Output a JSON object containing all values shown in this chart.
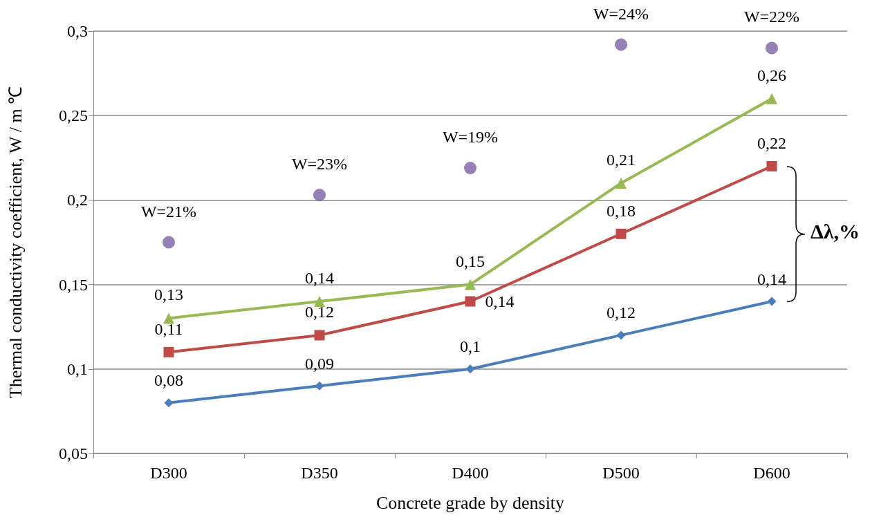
{
  "chart_data": {
    "type": "line",
    "xlabel": "Concrete grade by density",
    "ylabel": "Thermal conductivity coefficient, W / m ℃",
    "categories": [
      "D300",
      "D350",
      "D400",
      "D500",
      "D600"
    ],
    "series": [
      {
        "color": "#4a7ebb",
        "marker": "diamond",
        "values": [
          0.08,
          0.09,
          0.1,
          0.12,
          0.14
        ],
        "value_labels": [
          "0,08",
          "0,09",
          "0,1",
          "0,12",
          "0,14"
        ]
      },
      {
        "color": "#be4b48",
        "marker": "square",
        "values": [
          0.11,
          0.12,
          0.14,
          0.18,
          0.22
        ],
        "value_labels": [
          "0,11",
          "0,12",
          "0,14",
          "0,18",
          "0,22"
        ]
      },
      {
        "color": "#98b954",
        "marker": "triangle",
        "values": [
          0.13,
          0.14,
          0.15,
          0.21,
          0.26
        ],
        "value_labels": [
          "0,13",
          "0,14",
          "0,15",
          "0,21",
          "0,26"
        ]
      },
      {
        "type": "scatter",
        "color": "#7d60a0",
        "marker": "circle",
        "values": [
          0.175,
          0.203,
          0.219,
          0.292,
          0.29
        ]
      }
    ],
    "ylim": [
      0.05,
      0.3
    ],
    "yticks": [
      {
        "value": 0.05,
        "label": "0,05"
      },
      {
        "value": 0.1,
        "label": "0,1"
      },
      {
        "value": 0.15,
        "label": "0,15"
      },
      {
        "value": 0.2,
        "label": "0,2"
      },
      {
        "value": 0.25,
        "label": "0,25"
      },
      {
        "value": 0.3,
        "label": "0,3"
      }
    ],
    "grid": "y",
    "line_style": "solid",
    "annotations": [
      "Δλ,%",
      {
        "text": "W=21%",
        "x": "D300",
        "y": 0.175
      },
      {
        "text": "W=23%",
        "x": "D350",
        "y": 0.203
      },
      {
        "text": "W=19%",
        "x": "D400",
        "y": 0.219
      },
      {
        "text": "W=24%",
        "x": "D500",
        "y": 0.292
      },
      {
        "text": "W=22%",
        "x": "D600",
        "y": 0.29
      }
    ]
  }
}
